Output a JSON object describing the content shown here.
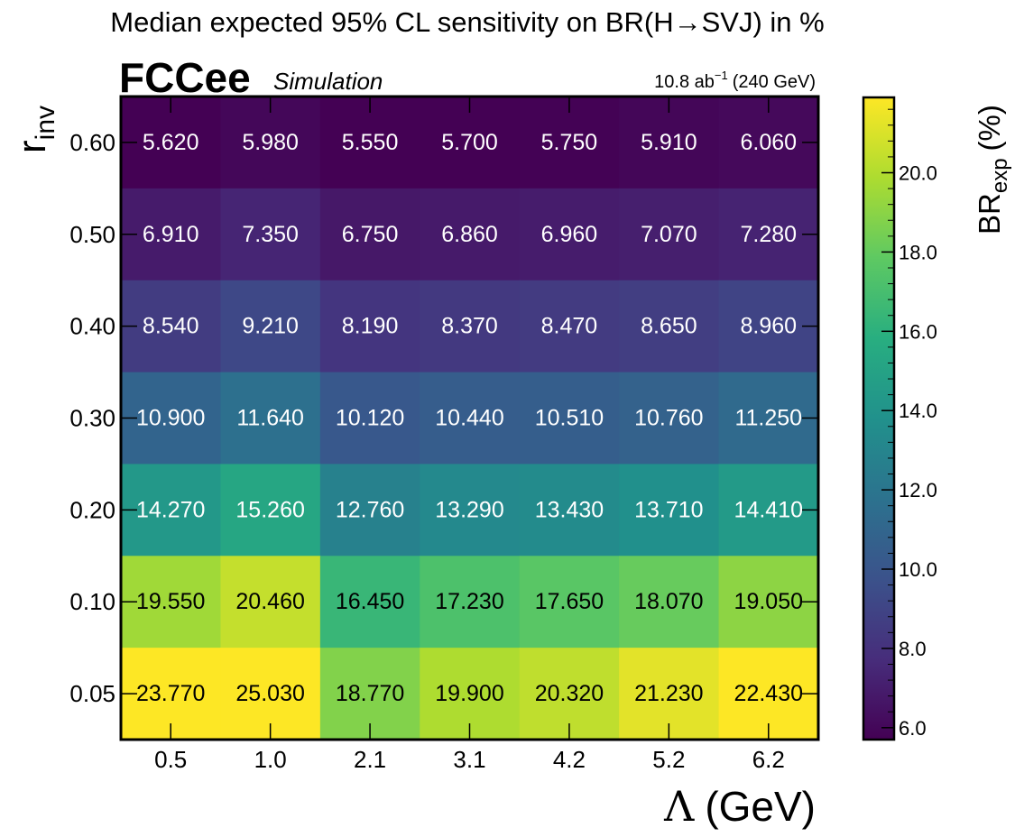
{
  "chart_data": {
    "type": "heatmap",
    "title": "Median expected 95% CL sensitivity on BR(H→SVJ) in %",
    "experiment": "FCCee",
    "experiment_tag": "Simulation",
    "lumi_value": "10.8 ab",
    "lumi_exp": "−1",
    "lumi_energy": "(240 GeV)",
    "xlabel_symbol": "Λ",
    "xlabel_unit": "(GeV)",
    "ylabel_main": "r",
    "ylabel_sub": "inv",
    "zlabel_main": "BR",
    "zlabel_sub": "exp",
    "zlabel_unit": "(%)",
    "x_categories": [
      "0.5",
      "1.0",
      "2.1",
      "3.1",
      "4.2",
      "5.2",
      "6.2"
    ],
    "y_categories": [
      "0.60",
      "0.50",
      "0.40",
      "0.30",
      "0.20",
      "0.10",
      "0.05"
    ],
    "values": [
      [
        5.62,
        5.98,
        5.55,
        5.7,
        5.75,
        5.91,
        6.06
      ],
      [
        6.91,
        7.35,
        6.75,
        6.86,
        6.96,
        7.07,
        7.28
      ],
      [
        8.54,
        9.21,
        8.19,
        8.37,
        8.47,
        8.65,
        8.96
      ],
      [
        10.9,
        11.64,
        10.12,
        10.44,
        10.51,
        10.76,
        11.25
      ],
      [
        14.27,
        15.26,
        12.76,
        13.29,
        13.43,
        13.71,
        14.41
      ],
      [
        19.55,
        20.46,
        16.45,
        17.23,
        17.65,
        18.07,
        19.05
      ],
      [
        23.77,
        25.03,
        18.77,
        19.9,
        20.32,
        21.23,
        22.43
      ]
    ],
    "cell_labels": [
      [
        "5.620",
        "5.980",
        "5.550",
        "5.700",
        "5.750",
        "5.910",
        "6.060"
      ],
      [
        "6.910",
        "7.350",
        "6.750",
        "6.860",
        "6.960",
        "7.070",
        "7.280"
      ],
      [
        "8.540",
        "9.210",
        "8.190",
        "8.370",
        "8.470",
        "8.650",
        "8.960"
      ],
      [
        "10.900",
        "11.640",
        "10.120",
        "10.440",
        "10.510",
        "10.760",
        "11.250"
      ],
      [
        "14.270",
        "15.260",
        "12.760",
        "13.290",
        "13.430",
        "13.710",
        "14.410"
      ],
      [
        "19.550",
        "20.460",
        "16.450",
        "17.230",
        "17.650",
        "18.070",
        "19.050"
      ],
      [
        "23.770",
        "25.030",
        "18.770",
        "19.900",
        "20.320",
        "21.230",
        "22.430"
      ]
    ],
    "colormap": "viridis",
    "zlim": [
      5.7,
      21.9
    ],
    "colorbar_ticks": [
      6.0,
      8.0,
      10.0,
      12.0,
      14.0,
      16.0,
      18.0,
      20.0
    ],
    "colorbar_tick_labels": [
      "6.0",
      "8.0",
      "10.0",
      "12.0",
      "14.0",
      "16.0",
      "18.0",
      "20.0"
    ],
    "grid": false,
    "legend": "none"
  }
}
